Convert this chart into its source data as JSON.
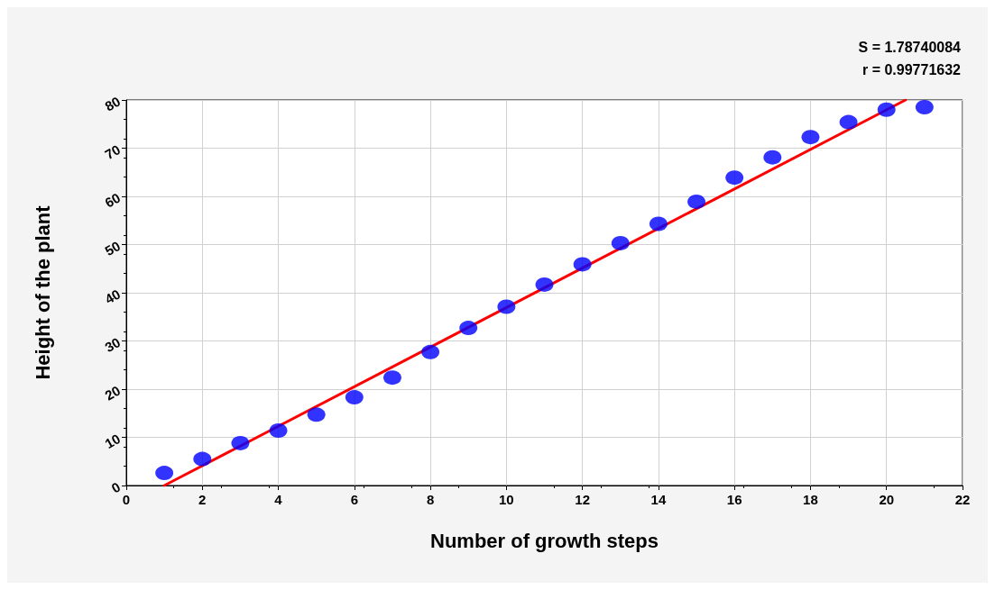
{
  "chart_data": {
    "type": "scatter",
    "xlabel": "Number of growth steps",
    "ylabel": "Height of the plant",
    "annotations": [
      "S = 1.78740084",
      "r = 0.99771632"
    ],
    "x": [
      1,
      2,
      3,
      4,
      5,
      6,
      7,
      8,
      9,
      10,
      11,
      12,
      13,
      14,
      15,
      16,
      17,
      18,
      19,
      20,
      21
    ],
    "series": [
      {
        "color": "#0000ff",
        "marker": "circle",
        "values": [
          2.6,
          5.5,
          8.8,
          11.4,
          14.7,
          18.3,
          22.4,
          27.7,
          32.7,
          37.1,
          41.7,
          45.9,
          50.3,
          54.3,
          58.9,
          63.9,
          68.1,
          72.3,
          75.4,
          78.0,
          78.5
        ]
      },
      {
        "type": "line",
        "color": "#ff0000",
        "marker": "none",
        "line_style": "solid",
        "x": [
          1.0,
          20.5
        ],
        "values": [
          0,
          80
        ]
      }
    ],
    "xlim": [
      0,
      22
    ],
    "xticks": [
      0,
      2,
      4,
      6,
      8,
      10,
      12,
      14,
      16,
      18,
      20,
      22
    ],
    "ylim": [
      0,
      80
    ],
    "yticks": [
      0,
      10,
      20,
      30,
      40,
      50,
      60,
      70,
      80
    ],
    "grid": true
  }
}
